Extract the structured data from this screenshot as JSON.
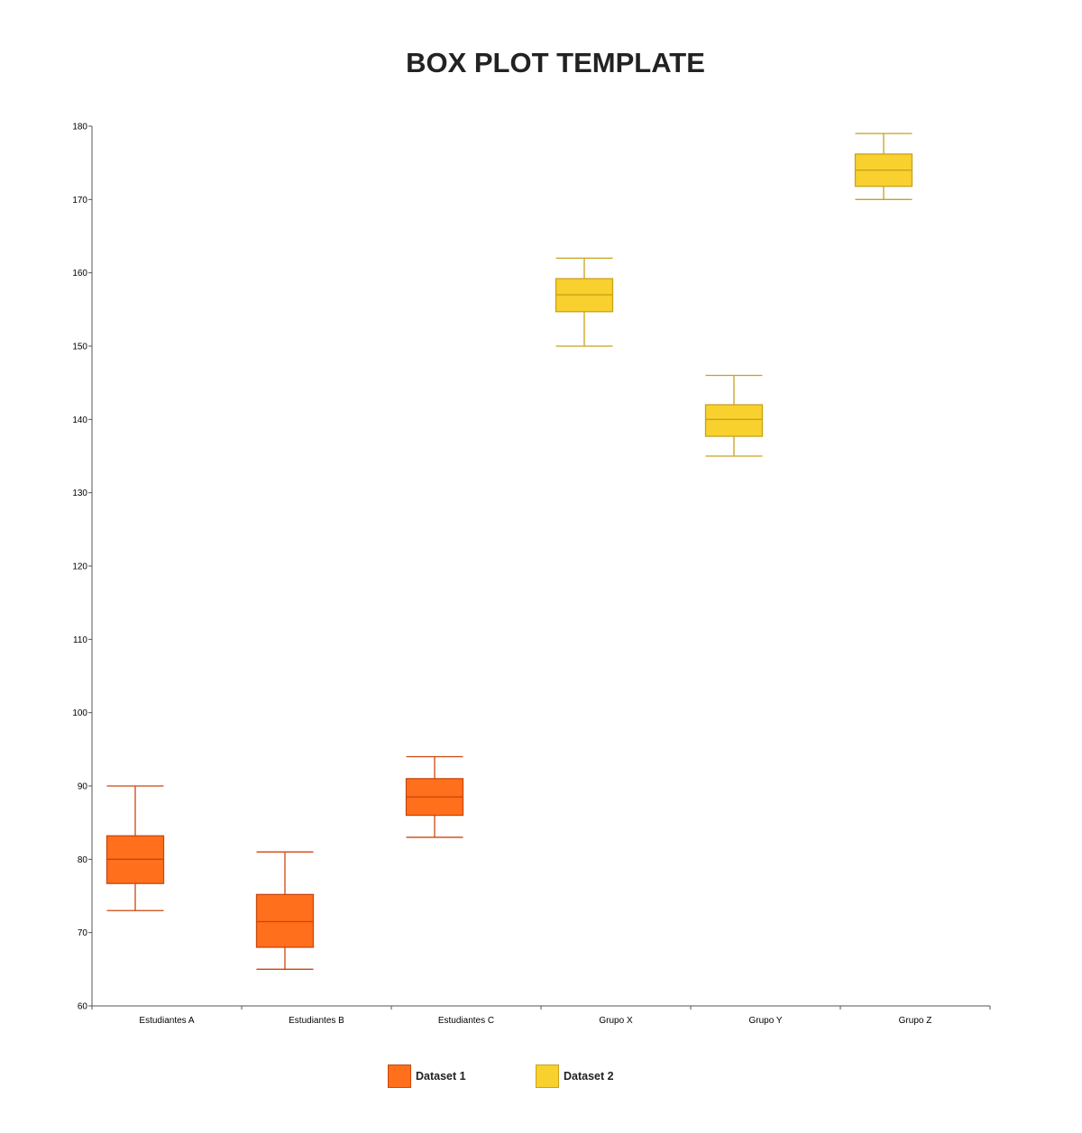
{
  "title": "BOX PLOT TEMPLATE",
  "colors": {
    "dataset1_fill": "#FF6F1C",
    "dataset1_stroke": "#C9470F",
    "dataset2_fill": "#F8D12E",
    "dataset2_stroke": "#C9A21A"
  },
  "legend": [
    {
      "label": "Dataset 1",
      "color": "#FF6F1C"
    },
    {
      "label": "Dataset 2",
      "color": "#F8D12E"
    }
  ],
  "chart_data": {
    "type": "boxplot",
    "title": "BOX PLOT TEMPLATE",
    "xlabel": "",
    "ylabel": "",
    "ylim": [
      60,
      180
    ],
    "yticks": [
      60,
      70,
      80,
      90,
      100,
      110,
      120,
      130,
      140,
      150,
      160,
      170,
      180
    ],
    "categories": [
      "Estudiantes A",
      "Estudiantes B",
      "Estudiantes C",
      "Grupo X",
      "Grupo Y",
      "Grupo Z"
    ],
    "grid": false,
    "legend_position": "bottom",
    "series": [
      {
        "name": "Dataset 1",
        "boxes": [
          {
            "category": "Estudiantes A",
            "min": 73,
            "q1": 76.7,
            "median": 80,
            "q3": 83.2,
            "max": 90
          },
          {
            "category": "Estudiantes B",
            "min": 65,
            "q1": 68,
            "median": 71.5,
            "q3": 75.2,
            "max": 81
          },
          {
            "category": "Estudiantes C",
            "min": 83,
            "q1": 86,
            "median": 88.5,
            "q3": 91,
            "max": 94
          }
        ]
      },
      {
        "name": "Dataset 2",
        "boxes": [
          {
            "category": "Grupo X",
            "min": 150,
            "q1": 154.7,
            "median": 157,
            "q3": 159.2,
            "max": 162
          },
          {
            "category": "Grupo Y",
            "min": 135,
            "q1": 137.7,
            "median": 140,
            "q3": 142,
            "max": 146
          },
          {
            "category": "Grupo Z",
            "min": 170,
            "q1": 171.8,
            "median": 174,
            "q3": 176.2,
            "max": 179
          }
        ]
      }
    ]
  }
}
